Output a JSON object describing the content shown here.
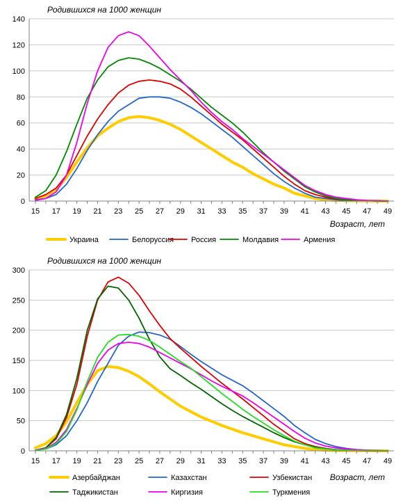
{
  "chart_data": [
    {
      "type": "line",
      "ylabel": "Родившихся на 1000 женщин",
      "xlabel": "Возраст, лет",
      "x": [
        15,
        16,
        17,
        18,
        19,
        20,
        21,
        22,
        23,
        24,
        25,
        26,
        27,
        28,
        29,
        30,
        31,
        32,
        33,
        34,
        35,
        36,
        37,
        38,
        39,
        40,
        41,
        42,
        43,
        44,
        45,
        46,
        47,
        48,
        49
      ],
      "x_ticks": [
        15,
        17,
        19,
        21,
        23,
        25,
        27,
        29,
        31,
        33,
        35,
        37,
        39,
        41,
        43,
        45,
        47,
        49
      ],
      "y_ticks": [
        0,
        20,
        40,
        60,
        80,
        100,
        120,
        140
      ],
      "ylim": [
        0,
        140
      ],
      "grid": true,
      "legend_position": "bottom",
      "series": [
        {
          "name": "Украина",
          "color": "#FFCC00",
          "width": 4,
          "values": [
            2,
            4,
            9,
            18,
            30,
            41,
            50,
            56,
            61,
            64,
            65,
            64,
            62,
            59,
            55,
            50,
            45,
            40,
            35,
            30,
            26,
            21,
            17,
            13,
            10,
            6,
            4,
            2,
            1,
            0.5,
            0.3,
            0.2,
            0.1,
            0,
            0
          ]
        },
        {
          "name": "Белоруссия",
          "color": "#2266CC",
          "width": 1.8,
          "values": [
            1,
            2,
            5,
            13,
            25,
            39,
            51,
            61,
            69,
            74,
            79,
            80,
            80,
            79,
            76,
            72,
            67,
            61,
            55,
            49,
            42,
            35,
            28,
            21,
            15,
            10,
            6,
            3,
            2,
            1,
            0.5,
            0.3,
            0.2,
            0.1,
            0
          ]
        },
        {
          "name": "Россия",
          "color": "#E00000",
          "width": 1.8,
          "values": [
            2,
            5,
            10,
            20,
            35,
            50,
            63,
            74,
            83,
            89,
            92,
            93,
            92,
            90,
            86,
            80,
            73,
            66,
            59,
            53,
            47,
            40,
            33,
            26,
            19,
            13,
            8,
            5,
            3,
            1.5,
            1,
            0.5,
            0.3,
            0.1,
            0
          ]
        },
        {
          "name": "Молдавия",
          "color": "#008800",
          "width": 1.8,
          "values": [
            3,
            8,
            20,
            38,
            59,
            79,
            93,
            103,
            108,
            110,
            109,
            106,
            102,
            97,
            92,
            86,
            79,
            72,
            66,
            60,
            53,
            45,
            37,
            30,
            23,
            17,
            11,
            7,
            4,
            2,
            1,
            0.5,
            0.3,
            0.1,
            0
          ]
        },
        {
          "name": "Армения",
          "color": "#EE00EE",
          "width": 1.8,
          "values": [
            0.5,
            2,
            7,
            20,
            45,
            75,
            100,
            118,
            127,
            130,
            127,
            119,
            110,
            101,
            93,
            85,
            76,
            68,
            61,
            55,
            48,
            42,
            36,
            30,
            24,
            18,
            12,
            8,
            5,
            3,
            2,
            1,
            0.5,
            0.3,
            0
          ]
        }
      ]
    },
    {
      "type": "line",
      "ylabel": "Родившихся на 1000 женщин",
      "xlabel": "Возраст, лет",
      "x": [
        15,
        16,
        17,
        18,
        19,
        20,
        21,
        22,
        23,
        24,
        25,
        26,
        27,
        28,
        29,
        30,
        31,
        32,
        33,
        34,
        35,
        36,
        37,
        38,
        39,
        40,
        41,
        42,
        43,
        44,
        45,
        46,
        47,
        48,
        49
      ],
      "x_ticks": [
        15,
        17,
        19,
        21,
        23,
        25,
        27,
        29,
        31,
        33,
        35,
        37,
        39,
        41,
        43,
        45,
        47,
        49
      ],
      "y_ticks": [
        0,
        50,
        100,
        150,
        200,
        250,
        300
      ],
      "ylim": [
        0,
        300
      ],
      "grid": true,
      "legend_position": "bottom",
      "series": [
        {
          "name": "Азербайджан",
          "color": "#FFCC00",
          "width": 4,
          "values": [
            5,
            12,
            25,
            48,
            80,
            110,
            133,
            140,
            138,
            132,
            123,
            111,
            98,
            86,
            74,
            65,
            56,
            49,
            42,
            36,
            30,
            25,
            20,
            15,
            10,
            7,
            4,
            2,
            1,
            0.5,
            0.3,
            0.2,
            0.1,
            0,
            0
          ]
        },
        {
          "name": "Казахстан",
          "color": "#2266CC",
          "width": 1.8,
          "values": [
            1,
            3,
            10,
            25,
            50,
            80,
            115,
            145,
            175,
            190,
            197,
            196,
            192,
            185,
            173,
            160,
            148,
            137,
            126,
            117,
            108,
            96,
            83,
            70,
            57,
            42,
            30,
            19,
            12,
            7,
            4,
            2,
            1,
            0.5,
            0
          ]
        },
        {
          "name": "Узбекистан",
          "color": "#E00000",
          "width": 1.8,
          "values": [
            1,
            5,
            20,
            55,
            110,
            190,
            250,
            280,
            288,
            278,
            258,
            232,
            208,
            186,
            170,
            155,
            140,
            126,
            112,
            99,
            86,
            72,
            58,
            44,
            32,
            20,
            12,
            7,
            4,
            2,
            1,
            0.5,
            0.3,
            0.1,
            0
          ]
        },
        {
          "name": "Таджикистан",
          "color": "#006600",
          "width": 1.8,
          "values": [
            1,
            5,
            22,
            60,
            120,
            200,
            252,
            273,
            270,
            250,
            220,
            185,
            156,
            136,
            125,
            113,
            102,
            90,
            78,
            67,
            57,
            48,
            39,
            30,
            22,
            15,
            10,
            6,
            3,
            2,
            1,
            0.5,
            0.3,
            0.1,
            0
          ]
        },
        {
          "name": "Киргизия",
          "color": "#EE00EE",
          "width": 1.8,
          "values": [
            1,
            4,
            14,
            35,
            70,
            110,
            145,
            167,
            178,
            180,
            178,
            172,
            163,
            154,
            145,
            136,
            126,
            116,
            107,
            99,
            91,
            80,
            68,
            56,
            44,
            32,
            21,
            13,
            8,
            5,
            3,
            2,
            1,
            0.5,
            0
          ]
        },
        {
          "name": "Туркмения",
          "color": "#22DD22",
          "width": 1.8,
          "values": [
            0.5,
            3,
            12,
            32,
            68,
            115,
            155,
            180,
            192,
            193,
            190,
            183,
            172,
            160,
            148,
            137,
            123,
            109,
            95,
            82,
            69,
            57,
            46,
            35,
            25,
            16,
            10,
            5,
            3,
            1.5,
            1,
            0.5,
            0.3,
            0.1,
            0
          ]
        }
      ]
    }
  ]
}
